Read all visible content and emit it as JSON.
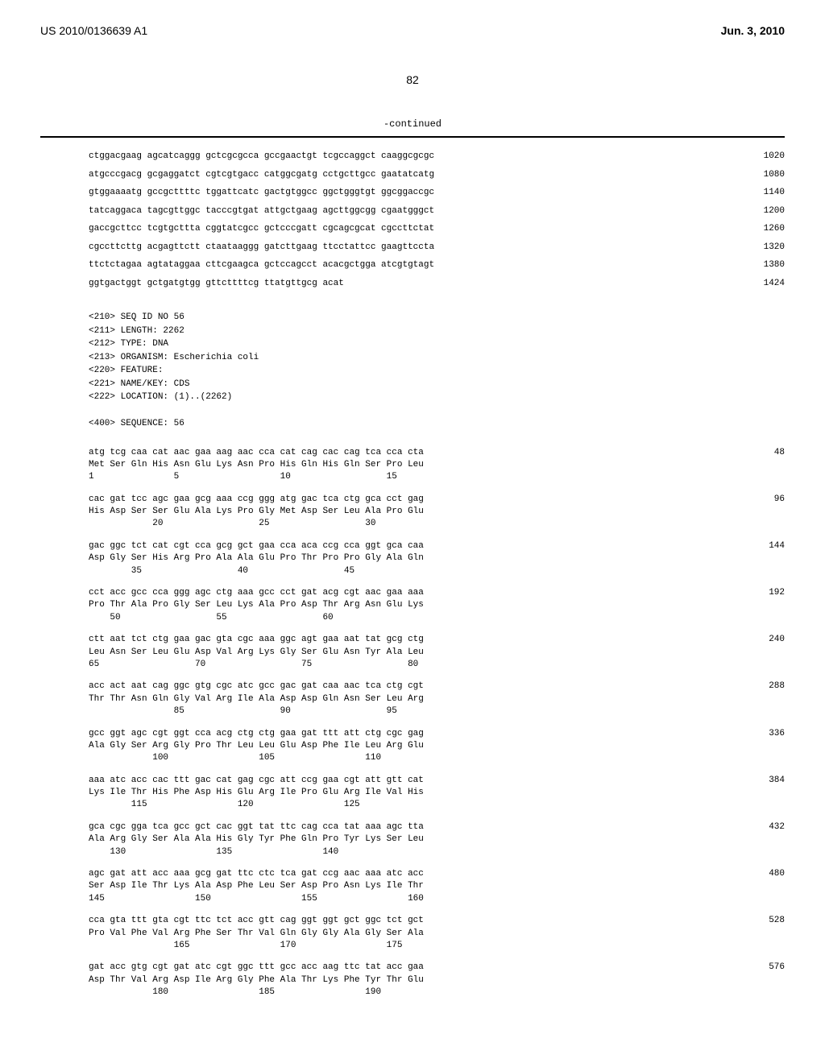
{
  "header": {
    "pub_number": "US 2010/0136639 A1",
    "pub_date": "Jun. 3, 2010",
    "page_number": "82"
  },
  "continued_label": "-continued",
  "nucleotide_seq": {
    "lines": [
      {
        "text": "ctggacgaag agcatcaggg gctcgcgcca gccgaactgt tcgccaggct caaggcgcgc",
        "pos": "1020"
      },
      {
        "text": "atgcccgacg gcgaggatct cgtcgtgacc catggcgatg cctgcttgcc gaatatcatg",
        "pos": "1080"
      },
      {
        "text": "gtggaaaatg gccgcttttc tggattcatc gactgtggcc ggctgggtgt ggcggaccgc",
        "pos": "1140"
      },
      {
        "text": "tatcaggaca tagcgttggc tacccgtgat attgctgaag agcttggcgg cgaatgggct",
        "pos": "1200"
      },
      {
        "text": "gaccgcttcc tcgtgcttta cggtatcgcc gctcccgatt cgcagcgcat cgccttctat",
        "pos": "1260"
      },
      {
        "text": "cgccttcttg acgagttctt ctaataaggg gatcttgaag ttcctattcc gaagttccta",
        "pos": "1320"
      },
      {
        "text": "ttctctagaa agtataggaa cttcgaagca gctccagcct acacgctgga atcgtgtagt",
        "pos": "1380"
      },
      {
        "text": "ggtgactggt gctgatgtgg gttcttttcg ttatgttgcg acat",
        "pos": "1424"
      }
    ]
  },
  "seq_header": {
    "lines": [
      "<210> SEQ ID NO 56",
      "<211> LENGTH: 2262",
      "<212> TYPE: DNA",
      "<213> ORGANISM: Escherichia coli",
      "<220> FEATURE:",
      "<221> NAME/KEY: CDS",
      "<222> LOCATION: (1)..(2262)",
      "",
      "<400> SEQUENCE: 56"
    ]
  },
  "cds_seq": {
    "entries": [
      {
        "codons": "atg tcg caa cat aac gaa aag aac cca cat cag cac cag tca cca cta",
        "protein": "Met Ser Gln His Asn Glu Lys Asn Pro His Gln His Gln Ser Pro Leu",
        "positions": "1               5                   10                  15",
        "num": "48"
      },
      {
        "codons": "cac gat tcc agc gaa gcg aaa ccg ggg atg gac tca ctg gca cct gag",
        "protein": "His Asp Ser Ser Glu Ala Lys Pro Gly Met Asp Ser Leu Ala Pro Glu",
        "positions": "            20                  25                  30",
        "num": "96"
      },
      {
        "codons": "gac ggc tct cat cgt cca gcg gct gaa cca aca ccg cca ggt gca caa",
        "protein": "Asp Gly Ser His Arg Pro Ala Ala Glu Pro Thr Pro Pro Gly Ala Gln",
        "positions": "        35                  40                  45",
        "num": "144"
      },
      {
        "codons": "cct acc gcc cca ggg agc ctg aaa gcc cct gat acg cgt aac gaa aaa",
        "protein": "Pro Thr Ala Pro Gly Ser Leu Lys Ala Pro Asp Thr Arg Asn Glu Lys",
        "positions": "    50                  55                  60",
        "num": "192"
      },
      {
        "codons": "ctt aat tct ctg gaa gac gta cgc aaa ggc agt gaa aat tat gcg ctg",
        "protein": "Leu Asn Ser Leu Glu Asp Val Arg Lys Gly Ser Glu Asn Tyr Ala Leu",
        "positions": "65                  70                  75                  80",
        "num": "240"
      },
      {
        "codons": "acc act aat cag ggc gtg cgc atc gcc gac gat caa aac tca ctg cgt",
        "protein": "Thr Thr Asn Gln Gly Val Arg Ile Ala Asp Asp Gln Asn Ser Leu Arg",
        "positions": "                85                  90                  95",
        "num": "288"
      },
      {
        "codons": "gcc ggt agc cgt ggt cca acg ctg ctg gaa gat ttt att ctg cgc gag",
        "protein": "Ala Gly Ser Arg Gly Pro Thr Leu Leu Glu Asp Phe Ile Leu Arg Glu",
        "positions": "            100                 105                 110",
        "num": "336"
      },
      {
        "codons": "aaa atc acc cac ttt gac cat gag cgc att ccg gaa cgt att gtt cat",
        "protein": "Lys Ile Thr His Phe Asp His Glu Arg Ile Pro Glu Arg Ile Val His",
        "positions": "        115                 120                 125",
        "num": "384"
      },
      {
        "codons": "gca cgc gga tca gcc gct cac ggt tat ttc cag cca tat aaa agc tta",
        "protein": "Ala Arg Gly Ser Ala Ala His Gly Tyr Phe Gln Pro Tyr Lys Ser Leu",
        "positions": "    130                 135                 140",
        "num": "432"
      },
      {
        "codons": "agc gat att acc aaa gcg gat ttc ctc tca gat ccg aac aaa atc acc",
        "protein": "Ser Asp Ile Thr Lys Ala Asp Phe Leu Ser Asp Pro Asn Lys Ile Thr",
        "positions": "145                 150                 155                 160",
        "num": "480"
      },
      {
        "codons": "cca gta ttt gta cgt ttc tct acc gtt cag ggt ggt gct ggc tct gct",
        "protein": "Pro Val Phe Val Arg Phe Ser Thr Val Gln Gly Gly Ala Gly Ser Ala",
        "positions": "                165                 170                 175",
        "num": "528"
      },
      {
        "codons": "gat acc gtg cgt gat atc cgt ggc ttt gcc acc aag ttc tat acc gaa",
        "protein": "Asp Thr Val Arg Asp Ile Arg Gly Phe Ala Thr Lys Phe Tyr Thr Glu",
        "positions": "            180                 185                 190",
        "num": "576"
      }
    ]
  },
  "colors": {
    "background": "#ffffff",
    "text": "#000000",
    "rule": "#000000"
  },
  "typography": {
    "header_fontsize": 14,
    "mono_fontsize": 11,
    "page_num_fontsize": 14,
    "font_family": "Arial, sans-serif",
    "mono_family": "Courier New, monospace"
  }
}
